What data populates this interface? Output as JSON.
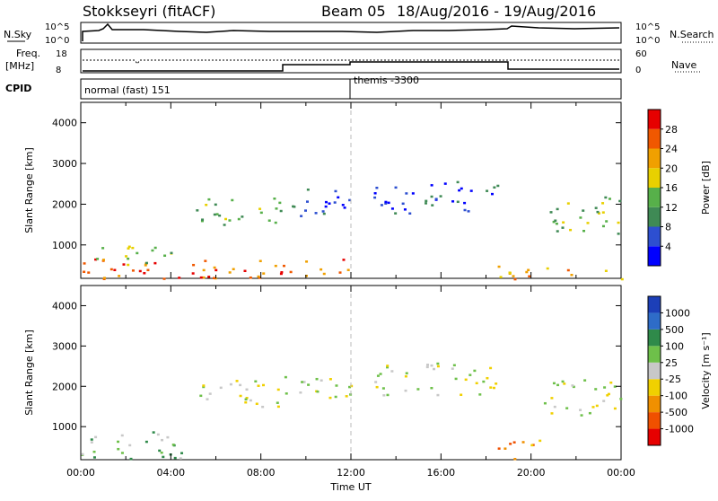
{
  "header": {
    "station": "Stokkseyri (fitACF)",
    "beam": "Beam 05",
    "dates": "18/Aug/2016 - 19/Aug/2016"
  },
  "top_panels": {
    "nsky_label": "N.Sky",
    "nsky_ticks": [
      "10^5",
      "10^0"
    ],
    "nsearch_label": "N.Search",
    "nsearch_ticks": [
      "10^5",
      "10^0"
    ],
    "freq_label": "Freq.",
    "freq_unit": "[MHz]",
    "freq_ticks": [
      "18",
      "8"
    ],
    "nave_label": "Nave",
    "nave_ticks": [
      "60",
      "0"
    ],
    "cpid_label": "CPID",
    "cpid_segments": [
      "normal (fast) 151",
      "themis -3300"
    ]
  },
  "chart_data": [
    {
      "type": "heatmap",
      "name": "power",
      "ylabel": "Slant Range [km]",
      "ylim": [
        180,
        4500
      ],
      "yticks": [
        "1000",
        "2000",
        "3000",
        "4000"
      ],
      "xlim": [
        "00:00",
        "24:00"
      ],
      "colorbar_label": "Power [dB]",
      "colorbar_ticks": [
        "4",
        "8",
        "12",
        "16",
        "20",
        "24",
        "28"
      ],
      "colors": [
        "#0000ff",
        "#2d4fd0",
        "#3f8a55",
        "#57b04a",
        "#e8d000",
        "#f0a000",
        "#f05800",
        "#e60000"
      ],
      "regions": [
        {
          "t0": 0.0,
          "t1": 12.0,
          "r0": 180,
          "r1": 700,
          "level": 6
        },
        {
          "t0": 0.5,
          "t1": 4.0,
          "r0": 500,
          "r1": 1000,
          "level": 3
        },
        {
          "t0": 5.0,
          "t1": 9.0,
          "r0": 1500,
          "r1": 2200,
          "level": 3
        },
        {
          "t0": 9.0,
          "t1": 12.0,
          "r0": 1700,
          "r1": 2400,
          "level": 1
        },
        {
          "t0": 13.0,
          "t1": 18.5,
          "r0": 1800,
          "r1": 2600,
          "level": 1
        },
        {
          "t0": 18.5,
          "t1": 24.0,
          "r0": 180,
          "r1": 500,
          "level": 5
        },
        {
          "t0": 20.5,
          "t1": 24.0,
          "r0": 1300,
          "r1": 2200,
          "level": 3
        }
      ]
    },
    {
      "type": "heatmap",
      "name": "velocity",
      "ylabel": "Slant Range [km]",
      "ylim": [
        180,
        4500
      ],
      "yticks": [
        "1000",
        "2000",
        "3000",
        "4000"
      ],
      "xlim": [
        "00:00",
        "24:00"
      ],
      "xticks": [
        "00:00",
        "04:00",
        "08:00",
        "12:00",
        "16:00",
        "20:00",
        "00:00"
      ],
      "xlabel": "Time UT",
      "colorbar_label": "Velocity [m s⁻¹]",
      "colorbar_ticks": [
        "1000",
        "500",
        "100",
        "25",
        "-25",
        "-100",
        "-500",
        "-1000"
      ],
      "colors": [
        "#1c3fb8",
        "#2e6cc8",
        "#2f8a4a",
        "#6ec04a",
        "#c8c8c8",
        "#f0d000",
        "#f09000",
        "#f05000",
        "#e60000"
      ],
      "regions": [
        {
          "t0": 0.0,
          "t1": 4.5,
          "r0": 180,
          "r1": 900,
          "level": 3
        },
        {
          "t0": 5.0,
          "t1": 9.0,
          "r0": 1500,
          "r1": 2200,
          "level": 4
        },
        {
          "t0": 9.0,
          "t1": 12.0,
          "r0": 1700,
          "r1": 2400,
          "level": 4
        },
        {
          "t0": 13.0,
          "t1": 18.5,
          "r0": 1800,
          "r1": 2600,
          "level": 4
        },
        {
          "t0": 18.5,
          "t1": 20.5,
          "r0": 180,
          "r1": 700,
          "level": 6
        },
        {
          "t0": 20.5,
          "t1": 24.0,
          "r0": 1300,
          "r1": 2200,
          "level": 4
        }
      ]
    }
  ]
}
